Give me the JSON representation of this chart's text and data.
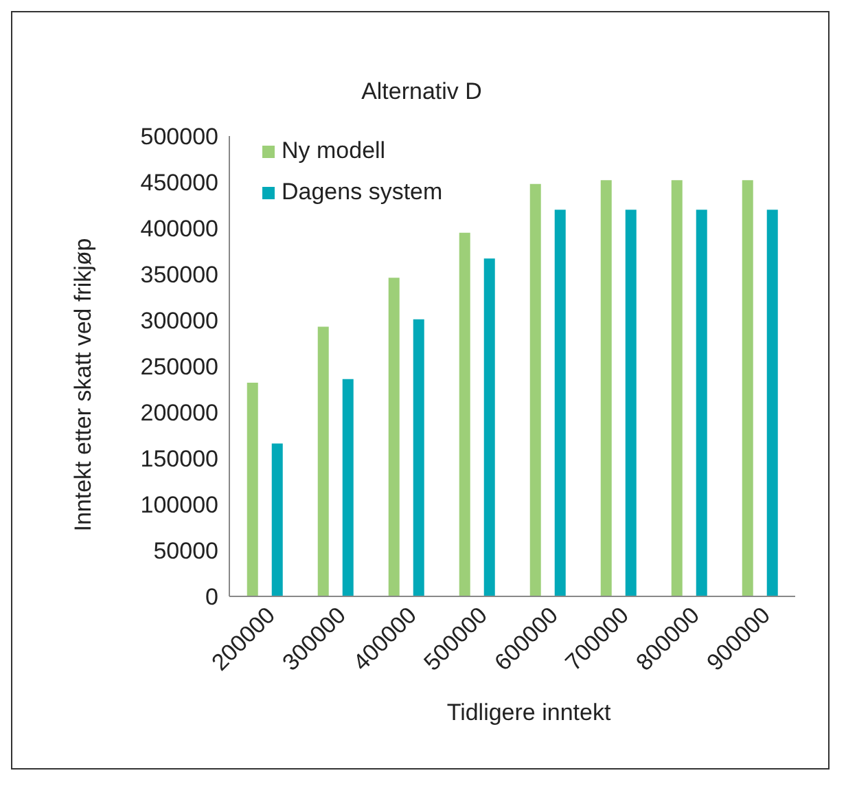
{
  "chart_data": {
    "type": "bar",
    "title": "Alternativ D",
    "xlabel": "Tidligere inntekt",
    "ylabel": "Inntekt etter skatt ved frikjøp",
    "categories": [
      "200000",
      "300000",
      "400000",
      "500000",
      "600000",
      "700000",
      "800000",
      "900000"
    ],
    "series": [
      {
        "name": "Ny modell",
        "color": "#9dcf78",
        "values": [
          232000,
          293000,
          346000,
          395000,
          448000,
          452000,
          452000,
          452000
        ]
      },
      {
        "name": "Dagens system",
        "color": "#02a9b8",
        "values": [
          166000,
          236000,
          301000,
          367000,
          420000,
          420000,
          420000,
          420000
        ]
      }
    ],
    "ylim": [
      0,
      500000
    ],
    "yticks": [
      0,
      50000,
      100000,
      150000,
      200000,
      250000,
      300000,
      350000,
      400000,
      450000,
      500000
    ],
    "grid": false,
    "legend": "top left"
  }
}
